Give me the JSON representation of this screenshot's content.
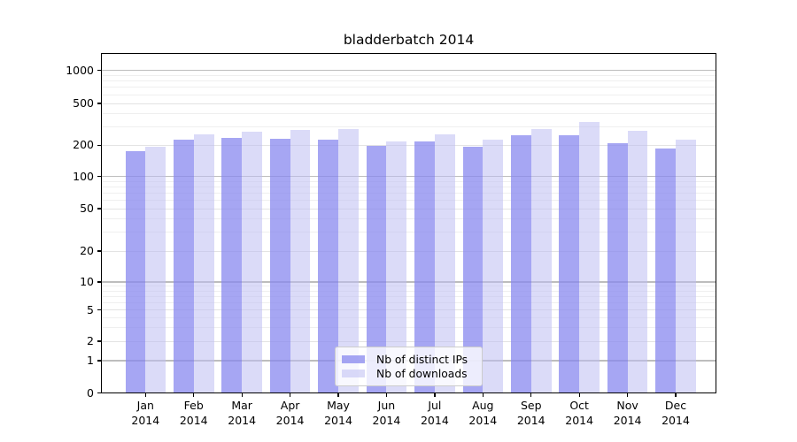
{
  "chart_data": {
    "type": "bar",
    "title": "bladderbatch 2014",
    "x_categories": [
      "Jan",
      "Feb",
      "Mar",
      "Apr",
      "May",
      "Jun",
      "Jul",
      "Aug",
      "Sep",
      "Oct",
      "Nov",
      "Dec"
    ],
    "x_year": "2014",
    "series": [
      {
        "name": "Nb of distinct IPs",
        "color": "rgba(136,136,239,0.75)",
        "values": [
          175,
          224,
          235,
          232,
          225,
          196,
          216,
          195,
          250,
          248,
          210,
          187
        ]
      },
      {
        "name": "Nb of downloads",
        "color": "rgba(190,190,242,0.55)",
        "values": [
          195,
          252,
          270,
          282,
          286,
          218,
          256,
          228,
          287,
          335,
          274,
          225
        ]
      }
    ],
    "yscale": "symlog",
    "ylim": [
      0,
      1500
    ],
    "yticks": [
      {
        "value": 1000,
        "label": "1000"
      },
      {
        "value": 500,
        "label": "500"
      },
      {
        "value": 200,
        "label": "200"
      },
      {
        "value": 100,
        "label": "100"
      },
      {
        "value": 50,
        "label": "50"
      },
      {
        "value": 20,
        "label": "20"
      },
      {
        "value": 10,
        "label": "10"
      },
      {
        "value": 5,
        "label": "5"
      },
      {
        "value": 2,
        "label": "2"
      },
      {
        "value": 1,
        "label": "1"
      },
      {
        "value": 0,
        "label": "0"
      }
    ],
    "grid": true,
    "grid_colors": {
      "power10": "#bdbdbd",
      "labeled": "#e3e3e3",
      "minor": "#efefef"
    },
    "legend_position": "lower-center"
  }
}
